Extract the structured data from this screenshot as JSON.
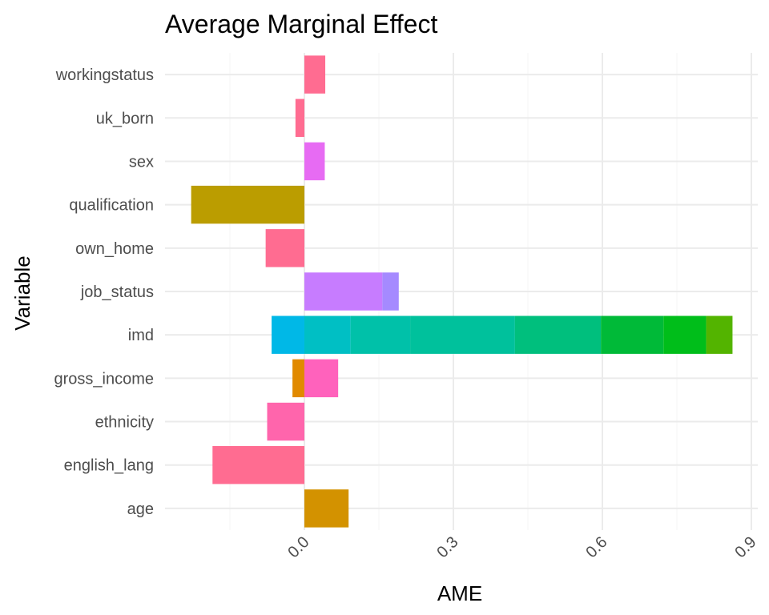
{
  "chart_data": {
    "type": "bar",
    "orientation": "horizontal",
    "stacked": true,
    "title": "Average Marginal Effect",
    "xlabel": "AME",
    "ylabel": "Variable",
    "xlim": [
      -0.28,
      0.92
    ],
    "x_ticks": [
      0.0,
      0.3,
      0.6,
      0.9
    ],
    "x_tick_labels": [
      "0.0",
      "0.3",
      "0.6",
      "0.9"
    ],
    "grid": true,
    "legend": "none",
    "categories": [
      "workingstatus",
      "uk_born",
      "sex",
      "qualification",
      "own_home",
      "job_status",
      "imd",
      "gross_income",
      "ethnicity",
      "english_lang",
      "age"
    ],
    "bars": [
      {
        "category": "workingstatus",
        "segments": [
          {
            "from": 0.0,
            "to": 0.042,
            "color": "#FF6C91"
          }
        ]
      },
      {
        "category": "uk_born",
        "segments": [
          {
            "from": -0.018,
            "to": 0.0,
            "color": "#FF6C91"
          }
        ]
      },
      {
        "category": "sex",
        "segments": [
          {
            "from": 0.0,
            "to": 0.041,
            "color": "#E76BF3"
          }
        ]
      },
      {
        "category": "qualification",
        "segments": [
          {
            "from": -0.228,
            "to": 0.0,
            "color": "#BB9D00"
          }
        ]
      },
      {
        "category": "own_home",
        "segments": [
          {
            "from": -0.078,
            "to": 0.0,
            "color": "#FF6C91"
          }
        ]
      },
      {
        "category": "job_status",
        "segments": [
          {
            "from": 0.0,
            "to": 0.157,
            "color": "#C77CFF"
          },
          {
            "from": 0.157,
            "to": 0.19,
            "color": "#A58AFF"
          }
        ]
      },
      {
        "category": "imd",
        "segments": [
          {
            "from": -0.066,
            "to": 0.0,
            "color": "#00B8E7"
          },
          {
            "from": 0.0,
            "to": 0.093,
            "color": "#00BFC4"
          },
          {
            "from": 0.093,
            "to": 0.213,
            "color": "#00C1A9"
          },
          {
            "from": 0.213,
            "to": 0.424,
            "color": "#00C19C"
          },
          {
            "from": 0.424,
            "to": 0.597,
            "color": "#00BF7D"
          },
          {
            "from": 0.597,
            "to": 0.723,
            "color": "#00BA38"
          },
          {
            "from": 0.723,
            "to": 0.809,
            "color": "#00BE1A"
          },
          {
            "from": 0.809,
            "to": 0.862,
            "color": "#53B400"
          }
        ]
      },
      {
        "category": "gross_income",
        "segments": [
          {
            "from": -0.024,
            "to": 0.0,
            "color": "#E18A00"
          },
          {
            "from": 0.0,
            "to": 0.068,
            "color": "#FF62BC"
          }
        ]
      },
      {
        "category": "ethnicity",
        "segments": [
          {
            "from": -0.075,
            "to": 0.0,
            "color": "#FF65AC"
          }
        ]
      },
      {
        "category": "english_lang",
        "segments": [
          {
            "from": -0.185,
            "to": 0.0,
            "color": "#FF6C91"
          }
        ]
      },
      {
        "category": "age",
        "segments": [
          {
            "from": 0.0,
            "to": 0.089,
            "color": "#D39200"
          }
        ]
      }
    ]
  }
}
